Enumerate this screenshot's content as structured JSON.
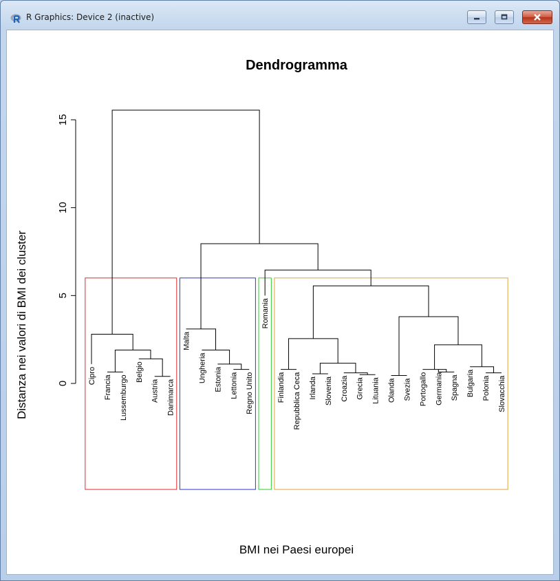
{
  "window": {
    "title": "R Graphics: Device 2 (inactive)",
    "icon": "r-logo-icon",
    "controls": [
      "minimize-icon",
      "maximize-icon",
      "close-icon"
    ]
  },
  "chart_data": {
    "type": "dendrogram",
    "title": "Dendrogramma",
    "xlabel": "BMI nei Paesi europei",
    "ylabel": "Distanza nei valori di BMI dei cluster",
    "ylim": [
      -4.5,
      16.5
    ],
    "yticks": [
      0,
      5,
      10,
      15
    ],
    "leaves": [
      "Cipro",
      "Francia",
      "Lussemburgo",
      "Belgio",
      "Austria",
      "Danimarca",
      "Malta",
      "Ungheria",
      "Estonia",
      "Lettonia",
      "Regno Unito",
      "Romania",
      "Finlandia",
      "Repubblica Ceca",
      "Irlanda",
      "Slovenia",
      "Croazia",
      "Grecia",
      "Lituania",
      "Olanda",
      "Svezia",
      "Portogallo",
      "Germania",
      "Spagna",
      "Bulgaria",
      "Polonia",
      "Slovacchia"
    ],
    "leaf_heights": [
      1.1,
      0.65,
      0.65,
      1.4,
      0.4,
      0.4,
      3.1,
      1.9,
      1.1,
      0.8,
      0.8,
      5.0,
      0.8,
      0.8,
      0.55,
      0.55,
      0.6,
      0.5,
      0.5,
      0.45,
      0.45,
      0.8,
      0.8,
      0.65,
      0.95,
      0.6,
      0.6
    ],
    "merges": [
      [
        -5,
        -6,
        0.4
      ],
      [
        -2,
        -3,
        0.65
      ],
      [
        -4,
        1,
        1.4
      ],
      [
        2,
        3,
        1.9
      ],
      [
        -1,
        4,
        2.8
      ],
      [
        -10,
        -11,
        0.8
      ],
      [
        -9,
        6,
        1.1
      ],
      [
        -8,
        7,
        1.9
      ],
      [
        -7,
        8,
        3.1
      ],
      [
        -13,
        -14,
        0.8
      ],
      [
        -15,
        -16,
        0.55
      ],
      [
        -18,
        -19,
        0.5
      ],
      [
        -17,
        12,
        0.6
      ],
      [
        11,
        13,
        1.15
      ],
      [
        10,
        14,
        2.55
      ],
      [
        -20,
        -21,
        0.45
      ],
      [
        -23,
        -24,
        0.65
      ],
      [
        -22,
        17,
        0.8
      ],
      [
        -26,
        -27,
        0.6
      ],
      [
        -25,
        19,
        0.95
      ],
      [
        18,
        20,
        2.2
      ],
      [
        16,
        21,
        3.8
      ],
      [
        15,
        22,
        5.55
      ],
      [
        -12,
        23,
        6.45
      ],
      [
        9,
        24,
        7.95
      ],
      [
        5,
        25,
        15.55
      ]
    ],
    "clusters": [
      {
        "from": 0,
        "to": 5,
        "color": "#e8262b"
      },
      {
        "from": 6,
        "to": 10,
        "color": "#2a35d4"
      },
      {
        "from": 11,
        "to": 11,
        "color": "#2bcf2b"
      },
      {
        "from": 12,
        "to": 26,
        "color": "#e0a63c"
      }
    ],
    "cluster_cut_height": 6.0
  }
}
